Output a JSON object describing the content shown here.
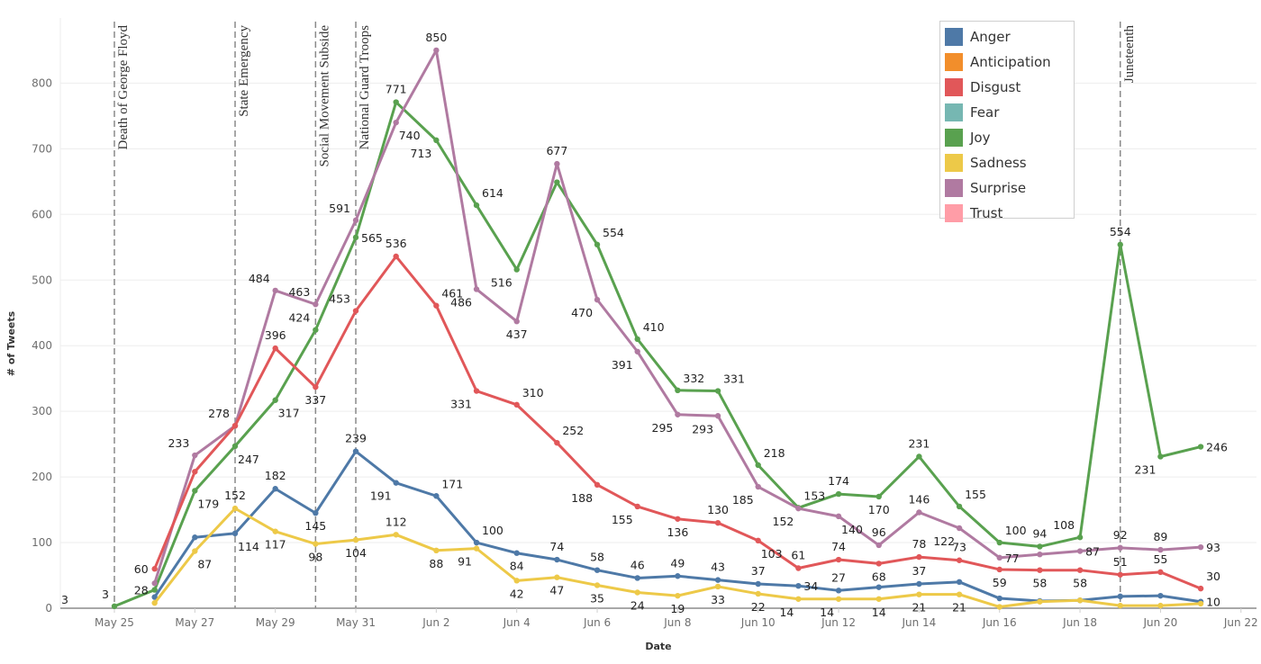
{
  "chart_data": {
    "type": "line",
    "title": "",
    "xlabel": "Date",
    "ylabel": "# of Tweets",
    "ylim": [
      0,
      880
    ],
    "y_ticks": [
      0,
      100,
      200,
      300,
      400,
      500,
      600,
      700,
      800
    ],
    "y_tick_labels": [
      "0",
      "100",
      "200",
      "300",
      "400",
      "500",
      "600",
      "700",
      "800"
    ],
    "x_start_day": 0,
    "x_end_day": 28,
    "x_tick_days": [
      0,
      2,
      4,
      6,
      8,
      10,
      12,
      14,
      16,
      18,
      20,
      22,
      24,
      26,
      28
    ],
    "x_tick_labels": [
      "May 25",
      "May 27",
      "May 29",
      "May 31",
      "Jun 2",
      "Jun 4",
      "Jun 6",
      "Jun 8",
      "Jun 10",
      "Jun 12",
      "Jun 14",
      "Jun 16",
      "Jun 18",
      "Jun 20",
      "Jun 22"
    ],
    "x_day_note": "day 0 = May 25",
    "grid": true,
    "legend_position": "top-right",
    "legend": [
      {
        "name": "Anger",
        "color": "#4e79a7"
      },
      {
        "name": "Anticipation",
        "color": "#f28e2b"
      },
      {
        "name": "Disgust",
        "color": "#e15759"
      },
      {
        "name": "Fear",
        "color": "#76b7b2"
      },
      {
        "name": "Joy",
        "color": "#59a14f"
      },
      {
        "name": "Sadness",
        "color": "#edc948"
      },
      {
        "name": "Surprise",
        "color": "#b07aa1"
      },
      {
        "name": "Trust",
        "color": "#ff9da7"
      }
    ],
    "reference_lines": [
      {
        "day": 0,
        "label": "Death of George Floyd"
      },
      {
        "day": 3,
        "label": "State Emergency"
      },
      {
        "day": 5,
        "label": "Social Movement Subside"
      },
      {
        "day": 6,
        "label": "National Guard Troops"
      },
      {
        "day": 25,
        "label": "Juneteenth"
      }
    ],
    "series": [
      {
        "name": "Joy",
        "color": "#59a14f",
        "days": [
          0,
          1,
          2,
          3,
          4,
          5,
          6,
          7,
          8,
          9,
          10,
          11,
          12,
          13,
          14,
          15,
          16,
          17,
          18,
          19,
          20,
          21,
          22,
          23,
          24,
          25,
          26,
          27
        ],
        "values": [
          3,
          28,
          179,
          247,
          317,
          424,
          565,
          771,
          713,
          614,
          516,
          649,
          554,
          410,
          332,
          331,
          218,
          153,
          174,
          170,
          231,
          155,
          100,
          94,
          108,
          554,
          231,
          246
        ],
        "labels": [
          "3",
          "28",
          "179",
          "247",
          "317",
          "424",
          "565",
          "771",
          "713",
          "614",
          "516",
          "",
          "554",
          "410",
          "332",
          "331",
          "218",
          "153",
          "174",
          "170",
          "231",
          "155",
          "100",
          "94",
          "108",
          "554",
          "231",
          "246"
        ],
        "label_pos": [
          "above-left",
          "left",
          "below-right",
          "below-right",
          "below-right",
          "above-left",
          "right",
          "above",
          "below-left",
          "above-right",
          "below-left",
          "",
          "above-right",
          "above-right",
          "above-right",
          "above-right",
          "above-right",
          "above-right",
          "above",
          "below",
          "above",
          "above-right",
          "above-right",
          "above",
          "above-left",
          "above",
          "below-left",
          "right"
        ]
      },
      {
        "name": "Surprise",
        "color": "#b07aa1",
        "days": [
          1,
          2,
          3,
          4,
          5,
          6,
          7,
          8,
          9,
          10,
          11,
          12,
          13,
          14,
          15,
          16,
          17,
          18,
          19,
          20,
          21,
          22,
          23,
          24,
          25,
          26,
          27
        ],
        "values": [
          38,
          233,
          278,
          484,
          463,
          591,
          740,
          850,
          486,
          437,
          677,
          470,
          391,
          295,
          293,
          185,
          152,
          140,
          96,
          146,
          122,
          77,
          82,
          87,
          92,
          89,
          93
        ],
        "labels": [
          "",
          "233",
          "278",
          "484",
          "463",
          "591",
          "740",
          "850",
          "486",
          "437",
          "677",
          "470",
          "391",
          "295",
          "293",
          "185",
          "152",
          "140",
          "96",
          "146",
          "122",
          "77",
          "",
          "87",
          "92",
          "89",
          "93"
        ],
        "label_pos": [
          "",
          "above-left",
          "above-left",
          "above-left",
          "above-left",
          "above-left",
          "below-right",
          "above",
          "below-left",
          "below",
          "above",
          "below-left",
          "below-left",
          "below-left",
          "below-left",
          "below-left",
          "below-left",
          "below-right",
          "above",
          "above",
          "below-left",
          "right",
          "",
          "right",
          "above",
          "above",
          "right"
        ]
      },
      {
        "name": "Disgust",
        "color": "#e15759",
        "days": [
          1,
          2,
          3,
          4,
          5,
          6,
          7,
          8,
          9,
          10,
          11,
          12,
          13,
          14,
          15,
          16,
          17,
          18,
          19,
          20,
          21,
          22,
          23,
          24,
          25,
          26,
          27
        ],
        "values": [
          60,
          208,
          278,
          396,
          337,
          453,
          536,
          461,
          331,
          310,
          252,
          188,
          155,
          136,
          130,
          103,
          61,
          74,
          68,
          78,
          73,
          59,
          58,
          58,
          51,
          55,
          30
        ],
        "labels": [
          "60",
          "",
          "",
          "396",
          "337",
          "453",
          "536",
          "461",
          "331",
          "310",
          "252",
          "188",
          "155",
          "136",
          "130",
          "103",
          "61",
          "74",
          "68",
          "78",
          "73",
          "59",
          "58",
          "58",
          "51",
          "55",
          "30"
        ],
        "label_pos": [
          "left",
          "",
          "",
          "above",
          "below",
          "above-left",
          "above",
          "above-right",
          "below-left",
          "above-right",
          "above-right",
          "below-left",
          "below-left",
          "below",
          "above",
          "below-right",
          "above",
          "above",
          "below",
          "above",
          "above",
          "below",
          "below",
          "below",
          "above",
          "above",
          "above-right"
        ]
      },
      {
        "name": "Anger",
        "color": "#4e79a7",
        "days": [
          1,
          2,
          3,
          4,
          5,
          6,
          7,
          8,
          9,
          10,
          11,
          12,
          13,
          14,
          15,
          16,
          17,
          18,
          19,
          20,
          21,
          22,
          23,
          24,
          25,
          26,
          27
        ],
        "values": [
          17,
          108,
          114,
          182,
          145,
          239,
          191,
          171,
          100,
          84,
          74,
          58,
          46,
          49,
          43,
          37,
          34,
          27,
          32,
          37,
          40,
          15,
          11,
          12,
          18,
          19,
          10
        ],
        "labels": [
          "",
          "",
          "114",
          "182",
          "145",
          "239",
          "191",
          "171",
          "100",
          "84",
          "74",
          "58",
          "46",
          "49",
          "43",
          "37",
          "34",
          "27",
          "",
          "37",
          "",
          "",
          "",
          "",
          "",
          "",
          "10"
        ],
        "label_pos": [
          "",
          "",
          "below-right",
          "above",
          "below",
          "above",
          "below-left",
          "above-right",
          "above-right",
          "below",
          "above",
          "above",
          "above",
          "above",
          "above",
          "above",
          "right",
          "above",
          "",
          "above",
          "",
          "",
          "",
          "",
          "",
          "",
          "right"
        ]
      },
      {
        "name": "Sadness",
        "color": "#edc948",
        "days": [
          1,
          2,
          3,
          4,
          5,
          6,
          7,
          8,
          9,
          10,
          11,
          12,
          13,
          14,
          15,
          16,
          17,
          18,
          19,
          20,
          21,
          22,
          23,
          24,
          25,
          26,
          27
        ],
        "values": [
          8,
          87,
          152,
          117,
          98,
          104,
          112,
          88,
          91,
          42,
          47,
          35,
          24,
          19,
          33,
          22,
          14,
          14,
          14,
          21,
          21,
          2,
          10,
          12,
          4,
          4,
          7
        ],
        "labels": [
          "",
          "87",
          "152",
          "117",
          "98",
          "104",
          "112",
          "88",
          "91",
          "42",
          "47",
          "35",
          "24",
          "19",
          "33",
          "22",
          "14",
          "14",
          "14",
          "21",
          "21",
          "",
          "",
          "",
          "",
          "",
          ""
        ],
        "label_pos": [
          "",
          "below-right",
          "above",
          "below",
          "below",
          "below",
          "above",
          "below",
          "below-left",
          "below",
          "below",
          "below",
          "below",
          "below",
          "below",
          "below",
          "below-left",
          "below-left",
          "below",
          "below",
          "below",
          "",
          "",
          "",
          "",
          "",
          ""
        ]
      }
    ],
    "stray_labels": [
      {
        "text": "3",
        "note": "data label at far left near origin"
      }
    ]
  }
}
